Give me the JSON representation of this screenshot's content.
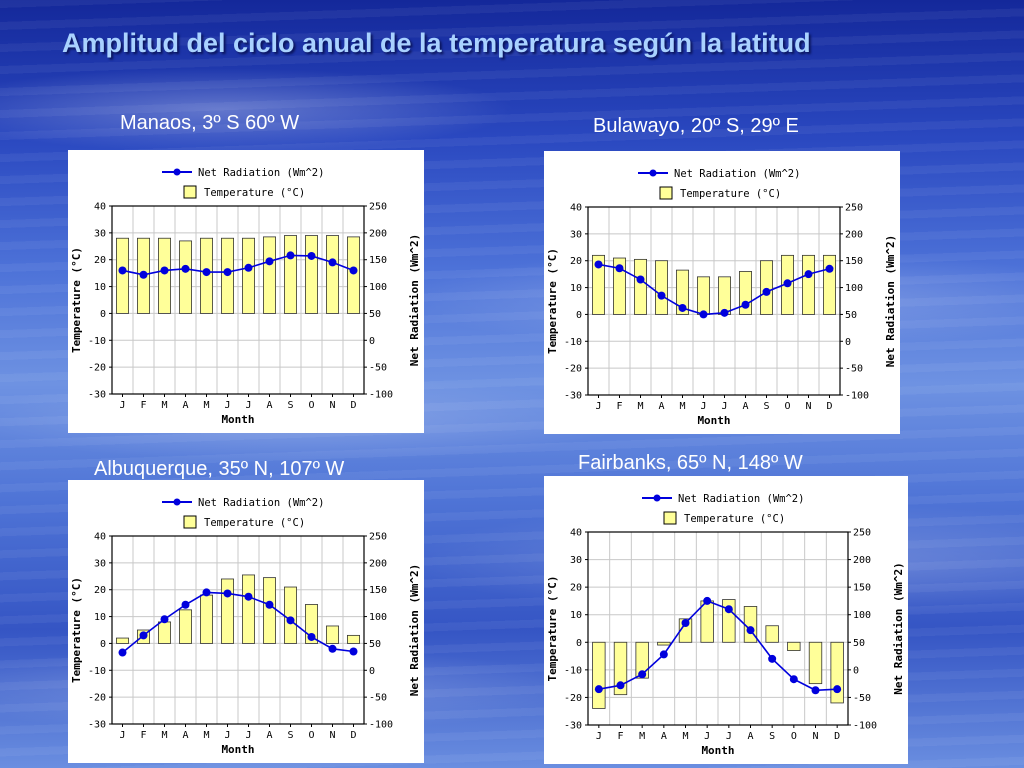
{
  "title": "Amplitud del ciclo anual de la temperatura según la latitud",
  "chart_data": [
    {
      "type": "bar",
      "caption": "Manaos, 3º S  60º W",
      "categories": [
        "J",
        "F",
        "M",
        "A",
        "M",
        "J",
        "J",
        "A",
        "S",
        "O",
        "N",
        "D"
      ],
      "xlabel": "Month",
      "ylabel": "Temperature (°C)",
      "y2label": "Net Radiation (Wm^2)",
      "ylim": [
        -30,
        40
      ],
      "y2lim": [
        -100,
        250
      ],
      "yticks": [
        40,
        30,
        20,
        10,
        0,
        -10,
        -20,
        -30
      ],
      "y2ticks": [
        250,
        200,
        150,
        100,
        50,
        0,
        -50,
        -100
      ],
      "legend": {
        "placement": "top",
        "line": "Net Radiation (Wm^2)",
        "bar": "Temperature (°C)"
      },
      "series": [
        {
          "name": "Temperature (°C)",
          "type": "bar",
          "axis": "left",
          "values": [
            28,
            28,
            28,
            27,
            28,
            28,
            28,
            28.5,
            29,
            29,
            29,
            28.5
          ]
        },
        {
          "name": "Net Radiation (Wm^2)",
          "type": "line",
          "axis": "right",
          "values": [
            130,
            122,
            130,
            133,
            127,
            127,
            135,
            147,
            158,
            157,
            145,
            130
          ]
        }
      ],
      "colors": {
        "bar": "#ffff99",
        "line": "#0000dd"
      }
    },
    {
      "type": "bar",
      "caption": "Bulawayo, 20º S, 29º E",
      "categories": [
        "J",
        "F",
        "M",
        "A",
        "M",
        "J",
        "J",
        "A",
        "S",
        "O",
        "N",
        "D"
      ],
      "xlabel": "Month",
      "ylabel": "Temperature (°C)",
      "y2label": "Net Radiation (Wm^2)",
      "ylim": [
        -30,
        40
      ],
      "y2lim": [
        -100,
        250
      ],
      "yticks": [
        40,
        30,
        20,
        10,
        0,
        -10,
        -20,
        -30
      ],
      "y2ticks": [
        250,
        200,
        150,
        100,
        50,
        0,
        -50,
        -100
      ],
      "legend": {
        "placement": "top",
        "line": "Net Radiation (Wm^2)",
        "bar": "Temperature (°C)"
      },
      "series": [
        {
          "name": "Temperature (°C)",
          "type": "bar",
          "axis": "left",
          "values": [
            22,
            21,
            20.5,
            20,
            16.5,
            14,
            14,
            16,
            20,
            22,
            22,
            22
          ]
        },
        {
          "name": "Net Radiation (Wm^2)",
          "type": "line",
          "axis": "right",
          "values": [
            143,
            136,
            115,
            85,
            62,
            50,
            53,
            68,
            92,
            108,
            125,
            135
          ]
        }
      ],
      "colors": {
        "bar": "#ffff99",
        "line": "#0000dd"
      }
    },
    {
      "type": "bar",
      "caption": "Albuquerque, 35º N, 107º W",
      "categories": [
        "J",
        "F",
        "M",
        "A",
        "M",
        "J",
        "J",
        "A",
        "S",
        "O",
        "N",
        "D"
      ],
      "xlabel": "Month",
      "ylabel": "Temperature (°C)",
      "y2label": "Net Radiation (Wm^2)",
      "ylim": [
        -30,
        40
      ],
      "y2lim": [
        -100,
        250
      ],
      "yticks": [
        40,
        30,
        20,
        10,
        0,
        -10,
        -20,
        -30
      ],
      "y2ticks": [
        250,
        200,
        150,
        100,
        50,
        0,
        -50,
        -100
      ],
      "legend": {
        "placement": "top",
        "line": "Net Radiation (Wm^2)",
        "bar": "Temperature (°C)"
      },
      "series": [
        {
          "name": "Temperature (°C)",
          "type": "bar",
          "axis": "left",
          "values": [
            2,
            5,
            8,
            12.5,
            18,
            24,
            25.5,
            24.5,
            21,
            14.5,
            6.5,
            3
          ]
        },
        {
          "name": "Net Radiation (Wm^2)",
          "type": "line",
          "axis": "right",
          "values": [
            33,
            65,
            95,
            122,
            145,
            143,
            137,
            122,
            93,
            62,
            40,
            35
          ]
        }
      ],
      "colors": {
        "bar": "#ffff99",
        "line": "#0000dd"
      }
    },
    {
      "type": "bar",
      "caption": "Fairbanks, 65º N, 148º W",
      "categories": [
        "J",
        "F",
        "M",
        "A",
        "M",
        "J",
        "J",
        "A",
        "S",
        "O",
        "N",
        "D"
      ],
      "xlabel": "Month",
      "ylabel": "Temperature (°C)",
      "y2label": "Net Radiation (Wm^2)",
      "ylim": [
        -30,
        40
      ],
      "y2lim": [
        -100,
        250
      ],
      "yticks": [
        40,
        30,
        20,
        10,
        0,
        -10,
        -20,
        -30
      ],
      "y2ticks": [
        250,
        200,
        150,
        100,
        50,
        0,
        -50,
        -100
      ],
      "legend": {
        "placement": "top",
        "line": "Net Radiation (Wm^2)",
        "bar": "Temperature (°C)"
      },
      "series": [
        {
          "name": "Temperature (°C)",
          "type": "bar",
          "axis": "left",
          "values": [
            -24,
            -19,
            -13,
            -1,
            8.5,
            15,
            15.5,
            13,
            6,
            -3,
            -15,
            -22
          ]
        },
        {
          "name": "Net Radiation (Wm^2)",
          "type": "line",
          "axis": "right",
          "values": [
            -35,
            -28,
            -8,
            28,
            85,
            125,
            110,
            72,
            20,
            -17,
            -37,
            -35
          ]
        }
      ],
      "colors": {
        "bar": "#ffff99",
        "line": "#0000dd"
      }
    }
  ]
}
